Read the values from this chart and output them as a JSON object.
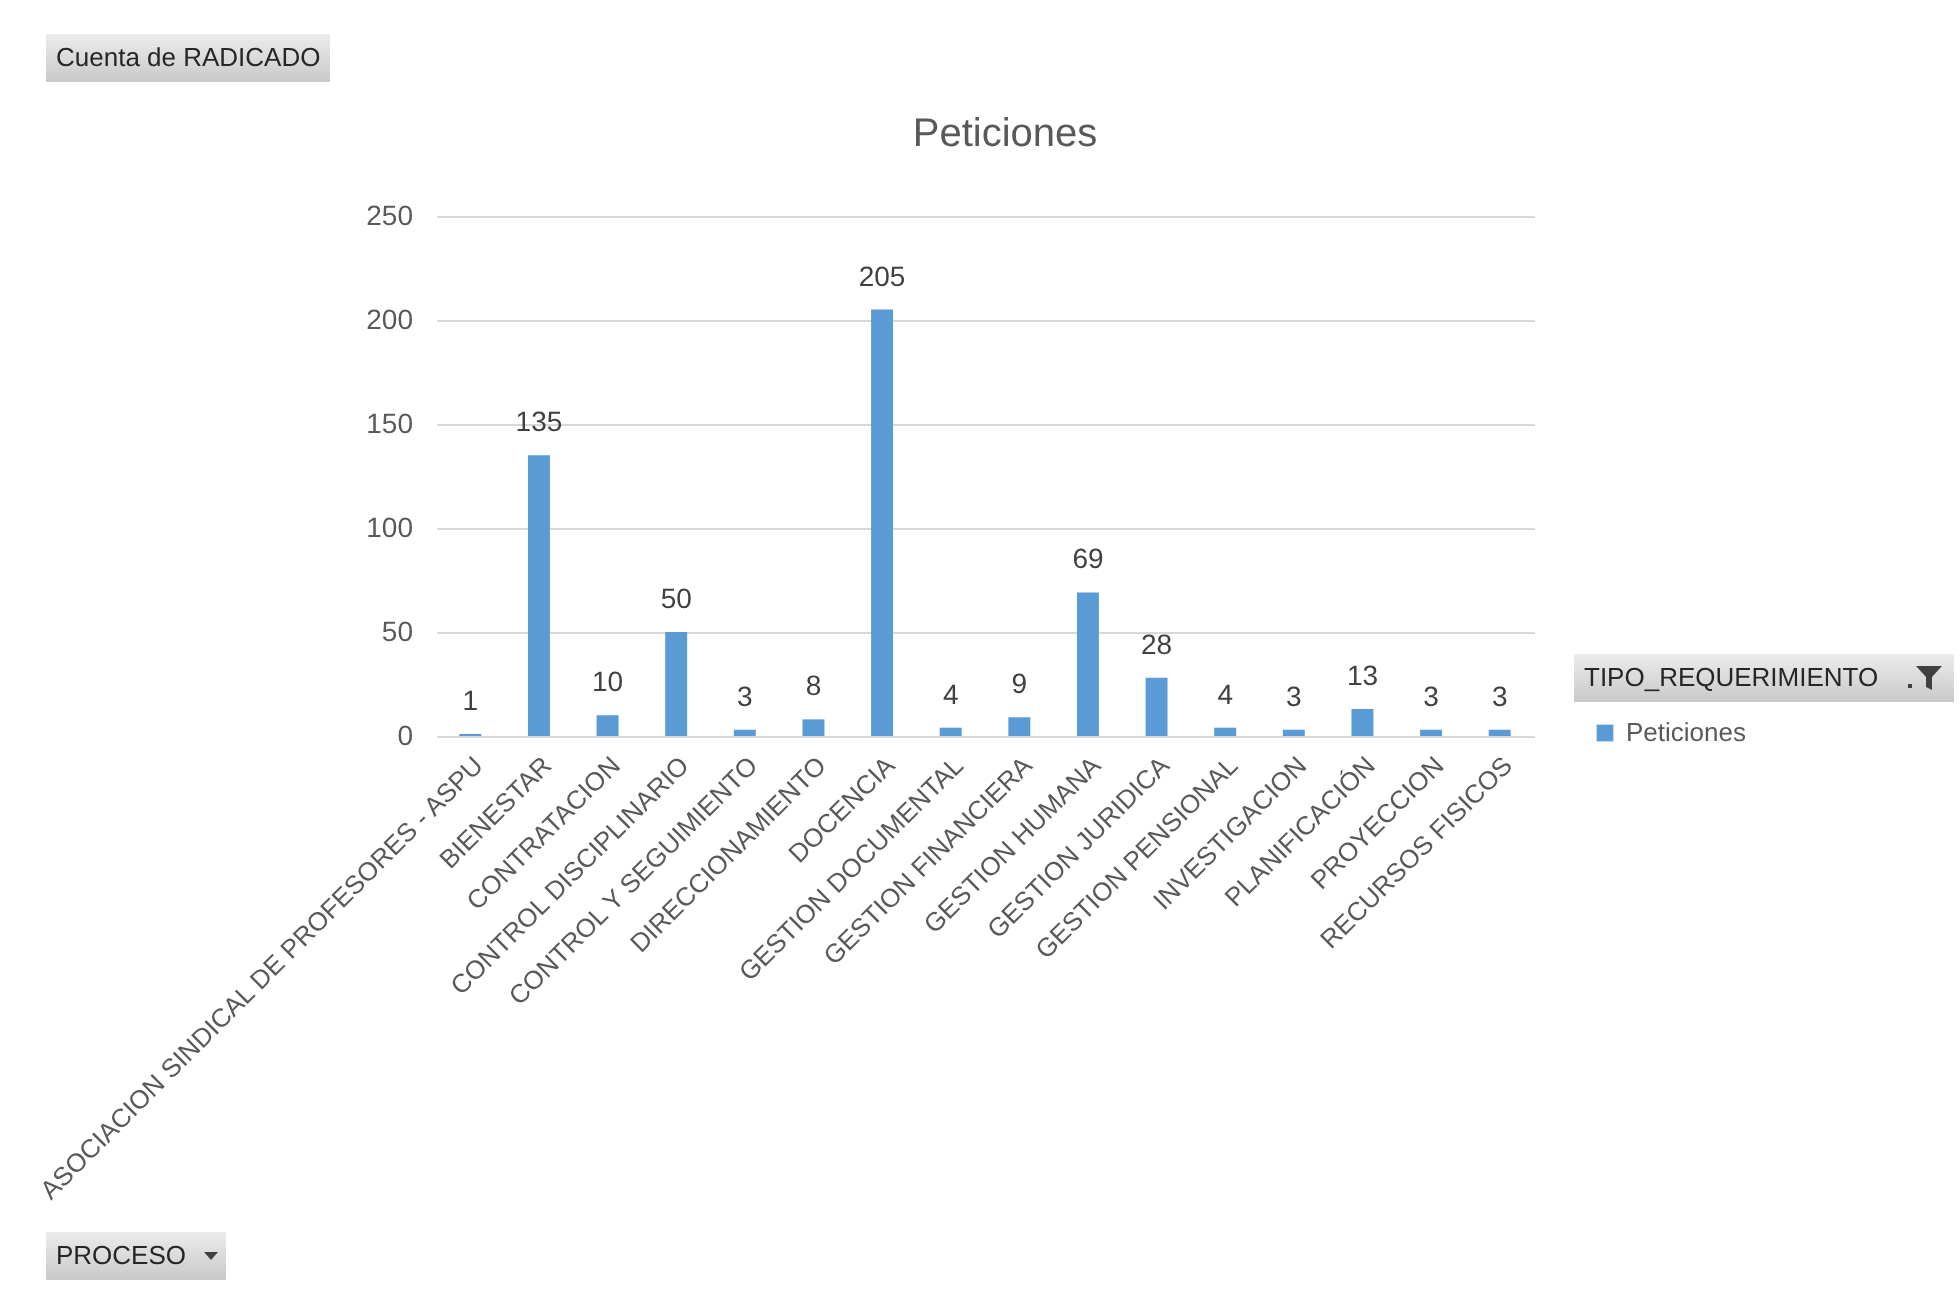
{
  "chart_data": {
    "type": "bar",
    "title": "Peticiones",
    "xlabel": "PROCESO",
    "legend_title": "TIPO_REQUERIMIENTO",
    "annotations": [
      "Cuenta de RADICADO"
    ],
    "categories": [
      "ASOCIACION SINDICAL DE PROFESORES - ASPU",
      "BIENESTAR",
      "CONTRATACION",
      "CONTROL DISCIPLINARIO",
      "CONTROL Y SEGUIMIENTO",
      "DIRECCIONAMIENTO",
      "DOCENCIA",
      "GESTION DOCUMENTAL",
      "GESTION FINANCIERA",
      "GESTION HUMANA",
      "GESTION JURIDICA",
      "GESTION PENSIONAL",
      "INVESTIGACION",
      "PLANIFICACIÓN",
      "PROYECCION",
      "RECURSOS FISICOS"
    ],
    "series": [
      {
        "name": "Peticiones",
        "color": "#5b9bd5",
        "values": [
          1,
          135,
          10,
          50,
          3,
          8,
          205,
          4,
          9,
          69,
          28,
          4,
          3,
          13,
          3,
          3
        ]
      }
    ],
    "ylim": [
      0,
      250
    ],
    "yticks": [
      0,
      50,
      100,
      150,
      200,
      250
    ],
    "grid": "y",
    "legend": "right",
    "data_labels": true
  }
}
